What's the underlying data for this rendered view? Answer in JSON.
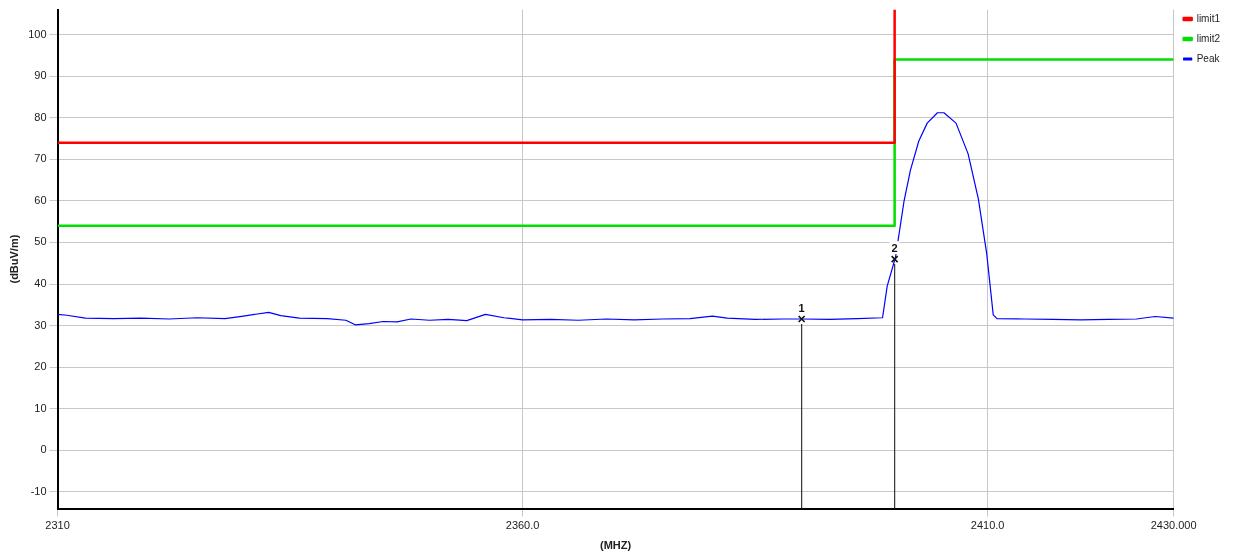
{
  "chart_data": {
    "type": "line",
    "xlabel": "(MHZ)",
    "ylabel": "(dBuV/m)",
    "xlim": [
      2310,
      2430
    ],
    "ylim": [
      -14,
      106
    ],
    "xticks": [
      2310,
      {
        "value": 2360,
        "label": "2360.0"
      },
      {
        "value": 2410,
        "label": "2410.0"
      },
      {
        "value": 2430,
        "label": "2430.000"
      }
    ],
    "yticks": [
      -10,
      0,
      10,
      20,
      30,
      40,
      50,
      60,
      70,
      80,
      90,
      100
    ],
    "grid": true,
    "legend": "top right",
    "marker": "none",
    "line_style": "solid",
    "series": [
      {
        "name": "limit1",
        "color": "#ff0000",
        "x": [
          2310,
          2400,
          2400
        ],
        "values": [
          74,
          74,
          106
        ]
      },
      {
        "name": "limit2",
        "color": "#00e000",
        "x": [
          2310,
          2400,
          2400,
          2430
        ],
        "values": [
          54,
          54,
          94,
          94
        ]
      },
      {
        "name": "Peak",
        "color": "#0000ff",
        "x": [
          2310,
          2311,
          2313,
          2316,
          2319,
          2322,
          2325,
          2328,
          2330,
          2332.7,
          2334,
          2336,
          2339,
          2341,
          2342,
          2343.5,
          2345,
          2346.5,
          2348,
          2350,
          2352,
          2354,
          2356,
          2358,
          2360,
          2363,
          2366,
          2369,
          2372,
          2375,
          2378,
          2380.4,
          2382,
          2385,
          2388,
          2390,
          2393,
          2396,
          2398.7,
          2399.2,
          2400.1,
          2401,
          2401.7,
          2402.6,
          2403.5,
          2404.6,
          2405.3,
          2406.6,
          2407.9,
          2409,
          2409.9,
          2410.6,
          2411,
          2414,
          2417,
          2420,
          2423,
          2426,
          2428,
          2430
        ],
        "values": [
          32.7,
          32.5,
          31.8,
          31.7,
          31.8,
          31.6,
          31.9,
          31.7,
          32.3,
          33.2,
          32.4,
          31.8,
          31.7,
          31.3,
          30.2,
          30.5,
          31.0,
          30.9,
          31.6,
          31.3,
          31.5,
          31.2,
          32.7,
          31.9,
          31.4,
          31.5,
          31.3,
          31.6,
          31.4,
          31.6,
          31.7,
          32.3,
          31.8,
          31.5,
          31.6,
          31.6,
          31.5,
          31.7,
          31.9,
          39.5,
          46.5,
          59.8,
          67.4,
          74.4,
          78.7,
          81.2,
          81.2,
          78.7,
          71.3,
          60.5,
          47.3,
          32.6,
          31.7,
          31.6,
          31.5,
          31.4,
          31.5,
          31.6,
          32.2,
          31.8
        ]
      }
    ],
    "annotations": [
      {
        "text": "1",
        "x": 2390,
        "y": 31.6
      },
      {
        "text": "2",
        "x": 2400,
        "y": 46
      }
    ]
  }
}
